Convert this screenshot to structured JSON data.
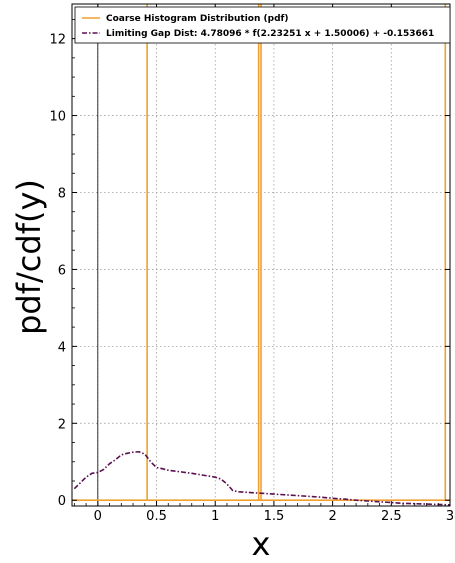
{
  "chart_data": {
    "type": "line",
    "xlabel": "x",
    "ylabel": "pdf/cdf(y)",
    "xlim": [
      -0.22,
      3.0
    ],
    "ylim": [
      -0.15,
      12.9
    ],
    "xticks": [
      0,
      0.5,
      1,
      1.5,
      2,
      2.5,
      3
    ],
    "xtick_labels": [
      "0",
      "0.5",
      "1",
      "1.5",
      "2",
      "2.5",
      "3"
    ],
    "yticks": [
      0,
      2,
      4,
      6,
      8,
      10,
      12
    ],
    "ytick_labels": [
      "0",
      "2",
      "4",
      "6",
      "8",
      "10",
      "12"
    ],
    "grid": true,
    "legend_position": "top-right",
    "vertical_reference_line_x": 0,
    "series": [
      {
        "name": "Coarse Histogram Distribution (pdf)",
        "color": "#f0a030",
        "style": "solid",
        "kind": "step",
        "x": [
          -0.22,
          0.42,
          0.42,
          0.42,
          1.37,
          1.37,
          1.37,
          1.39,
          1.39,
          1.39,
          2.96,
          2.96,
          2.96,
          3.0
        ],
        "y": [
          0,
          0,
          12.9,
          0,
          0,
          12.9,
          0,
          0,
          12.9,
          0,
          0,
          12.9,
          0,
          0
        ]
      },
      {
        "name": "Limiting Gap Dist: 4.78096 * f(2.23251 x + 1.50006) + -0.153661",
        "color": "#5a1050",
        "style": "dashdot",
        "kind": "line",
        "x": [
          -0.2,
          -0.15,
          -0.1,
          -0.05,
          0.0,
          0.05,
          0.1,
          0.15,
          0.2,
          0.25,
          0.3,
          0.35,
          0.4,
          0.45,
          0.5,
          0.55,
          0.6,
          0.7,
          0.8,
          0.9,
          1.0,
          1.05,
          1.1,
          1.15,
          1.2,
          1.3,
          1.4,
          1.5,
          1.6,
          1.7,
          1.8,
          1.9,
          2.0,
          2.1,
          2.2,
          2.3,
          2.4,
          2.5,
          2.6,
          2.7,
          2.8,
          2.9,
          3.0
        ],
        "y": [
          0.3,
          0.45,
          0.6,
          0.7,
          0.72,
          0.8,
          0.95,
          1.05,
          1.18,
          1.22,
          1.25,
          1.26,
          1.2,
          1.0,
          0.85,
          0.82,
          0.78,
          0.74,
          0.7,
          0.65,
          0.6,
          0.55,
          0.42,
          0.25,
          0.22,
          0.2,
          0.18,
          0.16,
          0.14,
          0.12,
          0.1,
          0.08,
          0.05,
          0.03,
          0.0,
          -0.02,
          -0.04,
          -0.06,
          -0.08,
          -0.09,
          -0.1,
          -0.11,
          -0.12
        ]
      }
    ]
  },
  "colors": {
    "axes": "#000000",
    "grid": "#a0a0a0",
    "background": "#ffffff"
  }
}
